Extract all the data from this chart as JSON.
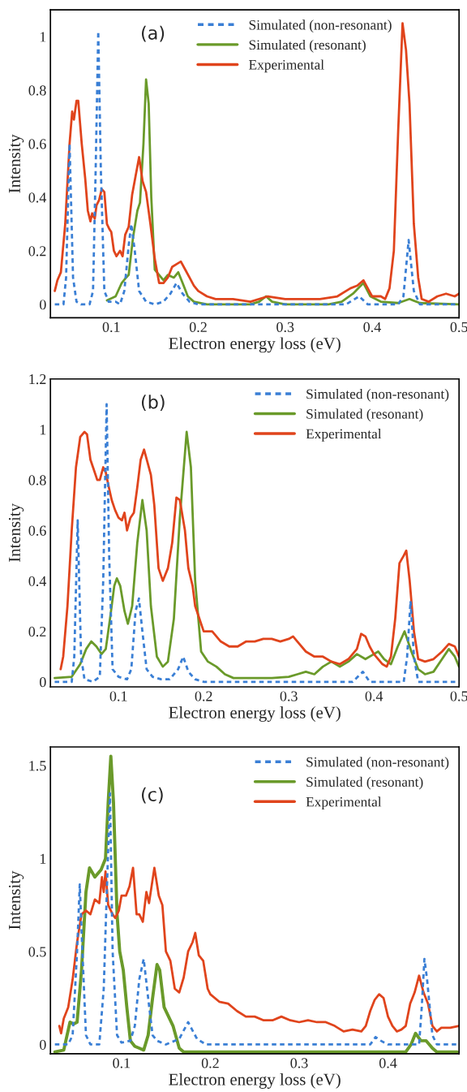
{
  "chart_data": [
    {
      "type": "line",
      "annotations": [
        "(a)"
      ],
      "xlabel": "Electron energy loss (eV)",
      "ylabel": "Intensity",
      "xlim": [
        0.03,
        0.5
      ],
      "ylim": [
        -0.05,
        1.1
      ],
      "xticks": [
        0.1,
        0.2,
        0.3,
        0.4,
        0.5
      ],
      "yticks": [
        0,
        0.2,
        0.4,
        0.6,
        0.8,
        1
      ],
      "legend": "top right",
      "grid": false,
      "series": [
        {
          "name": "Simulated (non-resonant)",
          "color": "#3a7fd5",
          "line_style": "dashed",
          "x": [
            0.035,
            0.045,
            0.048,
            0.052,
            0.056,
            0.06,
            0.065,
            0.075,
            0.079,
            0.082,
            0.085,
            0.088,
            0.092,
            0.097,
            0.105,
            0.11,
            0.115,
            0.12,
            0.123,
            0.127,
            0.132,
            0.14,
            0.15,
            0.16,
            0.168,
            0.175,
            0.182,
            0.19,
            0.2,
            0.3,
            0.37,
            0.385,
            0.395,
            0.43,
            0.436,
            0.442,
            0.448,
            0.455,
            0.5
          ],
          "values": [
            0,
            0,
            0.1,
            0.6,
            0.1,
            0.01,
            0,
            0,
            0.05,
            0.5,
            1.02,
            0.5,
            0.05,
            0.01,
            0.01,
            0,
            0.05,
            0.22,
            0.3,
            0.2,
            0.05,
            0.01,
            0,
            0.01,
            0.04,
            0.08,
            0.04,
            0.01,
            0,
            0,
            0,
            0.03,
            0,
            0,
            0.03,
            0.24,
            0.05,
            0,
            0
          ]
        },
        {
          "name": "Simulated (resonant)",
          "color": "#6a9a2a",
          "line_style": "solid",
          "x": [
            0.095,
            0.105,
            0.112,
            0.117,
            0.12,
            0.125,
            0.13,
            0.133,
            0.137,
            0.14,
            0.143,
            0.146,
            0.15,
            0.155,
            0.16,
            0.165,
            0.172,
            0.177,
            0.182,
            0.188,
            0.195,
            0.21,
            0.26,
            0.27,
            0.278,
            0.285,
            0.3,
            0.35,
            0.365,
            0.378,
            0.39,
            0.398,
            0.41,
            0.43,
            0.443,
            0.455,
            0.5
          ],
          "values": [
            0.015,
            0.03,
            0.08,
            0.1,
            0.11,
            0.25,
            0.35,
            0.38,
            0.6,
            0.84,
            0.75,
            0.4,
            0.13,
            0.11,
            0.09,
            0.11,
            0.1,
            0.12,
            0.08,
            0.03,
            0.01,
            0,
            0,
            0.01,
            0.03,
            0.01,
            0,
            0,
            0.01,
            0.04,
            0.08,
            0.03,
            0.01,
            0.005,
            0.02,
            0.005,
            0
          ]
        },
        {
          "name": "Experimental",
          "color": "#e0441c",
          "line_style": "solid",
          "x": [
            0.035,
            0.038,
            0.042,
            0.047,
            0.052,
            0.055,
            0.057,
            0.06,
            0.062,
            0.066,
            0.07,
            0.073,
            0.076,
            0.078,
            0.081,
            0.083,
            0.086,
            0.089,
            0.092,
            0.095,
            0.098,
            0.1,
            0.103,
            0.106,
            0.11,
            0.113,
            0.116,
            0.12,
            0.124,
            0.128,
            0.132,
            0.136,
            0.14,
            0.145,
            0.15,
            0.155,
            0.16,
            0.165,
            0.17,
            0.175,
            0.18,
            0.185,
            0.19,
            0.195,
            0.2,
            0.21,
            0.22,
            0.24,
            0.26,
            0.28,
            0.3,
            0.32,
            0.34,
            0.36,
            0.375,
            0.383,
            0.39,
            0.395,
            0.4,
            0.41,
            0.415,
            0.42,
            0.425,
            0.43,
            0.435,
            0.439,
            0.443,
            0.448,
            0.453,
            0.457,
            0.465,
            0.475,
            0.485,
            0.495,
            0.5
          ],
          "values": [
            0.05,
            0.09,
            0.12,
            0.3,
            0.6,
            0.72,
            0.69,
            0.76,
            0.76,
            0.6,
            0.47,
            0.35,
            0.31,
            0.34,
            0.32,
            0.37,
            0.39,
            0.43,
            0.42,
            0.3,
            0.28,
            0.27,
            0.2,
            0.18,
            0.2,
            0.18,
            0.26,
            0.29,
            0.41,
            0.48,
            0.55,
            0.46,
            0.42,
            0.3,
            0.17,
            0.08,
            0.08,
            0.1,
            0.14,
            0.15,
            0.16,
            0.13,
            0.1,
            0.07,
            0.05,
            0.03,
            0.02,
            0.02,
            0.01,
            0.03,
            0.02,
            0.02,
            0.02,
            0.03,
            0.06,
            0.07,
            0.09,
            0.06,
            0.03,
            0.03,
            0.02,
            0.06,
            0.2,
            0.65,
            1.05,
            0.95,
            0.75,
            0.3,
            0.1,
            0.02,
            0.01,
            0.03,
            0.04,
            0.03,
            0.04
          ]
        }
      ]
    },
    {
      "type": "line",
      "annotations": [
        "(b)"
      ],
      "xlabel": "Electron energy loss (eV)",
      "ylabel": "Intensity",
      "xlim": [
        0.02,
        0.5
      ],
      "ylim": [
        -0.02,
        1.2
      ],
      "xticks": [
        0.1,
        0.2,
        0.3,
        0.4,
        0.5
      ],
      "yticks": [
        0,
        0.2,
        0.4,
        0.6,
        0.8,
        1,
        1.2
      ],
      "legend": "top right",
      "grid": false,
      "series": [
        {
          "name": "Simulated (non-resonant)",
          "color": "#3a7fd5",
          "line_style": "dashed",
          "x": [
            0.025,
            0.045,
            0.048,
            0.052,
            0.056,
            0.06,
            0.07,
            0.078,
            0.082,
            0.086,
            0.089,
            0.093,
            0.1,
            0.11,
            0.115,
            0.12,
            0.124,
            0.128,
            0.133,
            0.14,
            0.15,
            0.16,
            0.17,
            0.176,
            0.182,
            0.19,
            0.2,
            0.375,
            0.387,
            0.395,
            0.435,
            0.439,
            0.443,
            0.447,
            0.452,
            0.5
          ],
          "values": [
            0,
            0,
            0.1,
            0.64,
            0.1,
            0.01,
            0,
            0.02,
            0.4,
            1.1,
            0.5,
            0.05,
            0.02,
            0.01,
            0.05,
            0.28,
            0.33,
            0.2,
            0.05,
            0.02,
            0.01,
            0.01,
            0.05,
            0.1,
            0.04,
            0.01,
            0,
            0,
            0.04,
            0,
            0,
            0.1,
            0.32,
            0.1,
            0,
            0
          ]
        },
        {
          "name": "Simulated (resonant)",
          "color": "#6a9a2a",
          "line_style": "solid",
          "x": [
            0.025,
            0.045,
            0.055,
            0.062,
            0.068,
            0.074,
            0.08,
            0.085,
            0.09,
            0.095,
            0.098,
            0.102,
            0.107,
            0.111,
            0.116,
            0.122,
            0.128,
            0.133,
            0.138,
            0.145,
            0.152,
            0.158,
            0.165,
            0.172,
            0.18,
            0.185,
            0.19,
            0.197,
            0.205,
            0.215,
            0.225,
            0.235,
            0.28,
            0.3,
            0.31,
            0.32,
            0.33,
            0.34,
            0.35,
            0.36,
            0.37,
            0.38,
            0.39,
            0.4,
            0.405,
            0.412,
            0.42,
            0.428,
            0.436,
            0.444,
            0.452,
            0.46,
            0.47,
            0.48,
            0.488,
            0.495,
            0.5
          ],
          "values": [
            0.015,
            0.02,
            0.07,
            0.13,
            0.16,
            0.14,
            0.11,
            0.13,
            0.25,
            0.38,
            0.41,
            0.38,
            0.28,
            0.23,
            0.3,
            0.55,
            0.72,
            0.6,
            0.3,
            0.1,
            0.06,
            0.08,
            0.25,
            0.65,
            0.99,
            0.85,
            0.4,
            0.12,
            0.08,
            0.06,
            0.03,
            0.015,
            0.015,
            0.02,
            0.03,
            0.04,
            0.03,
            0.06,
            0.08,
            0.06,
            0.08,
            0.11,
            0.09,
            0.11,
            0.12,
            0.09,
            0.07,
            0.14,
            0.2,
            0.12,
            0.05,
            0.03,
            0.04,
            0.09,
            0.13,
            0.1,
            0.06
          ]
        },
        {
          "name": "Experimental",
          "color": "#e0441c",
          "line_style": "solid",
          "x": [
            0.032,
            0.035,
            0.04,
            0.045,
            0.05,
            0.055,
            0.06,
            0.063,
            0.067,
            0.07,
            0.075,
            0.078,
            0.082,
            0.085,
            0.088,
            0.092,
            0.096,
            0.1,
            0.104,
            0.107,
            0.11,
            0.114,
            0.118,
            0.122,
            0.126,
            0.13,
            0.134,
            0.138,
            0.142,
            0.147,
            0.152,
            0.158,
            0.163,
            0.168,
            0.172,
            0.178,
            0.182,
            0.187,
            0.19,
            0.195,
            0.2,
            0.21,
            0.22,
            0.23,
            0.24,
            0.25,
            0.26,
            0.27,
            0.28,
            0.29,
            0.3,
            0.305,
            0.31,
            0.32,
            0.33,
            0.34,
            0.35,
            0.36,
            0.37,
            0.38,
            0.385,
            0.39,
            0.395,
            0.4,
            0.41,
            0.415,
            0.42,
            0.425,
            0.43,
            0.435,
            0.438,
            0.442,
            0.447,
            0.452,
            0.46,
            0.47,
            0.48,
            0.488,
            0.495,
            0.5
          ],
          "values": [
            0.05,
            0.1,
            0.3,
            0.6,
            0.85,
            0.97,
            0.99,
            0.98,
            0.88,
            0.85,
            0.8,
            0.8,
            0.85,
            0.83,
            0.78,
            0.72,
            0.68,
            0.65,
            0.64,
            0.67,
            0.6,
            0.65,
            0.67,
            0.77,
            0.88,
            0.92,
            0.87,
            0.82,
            0.7,
            0.45,
            0.4,
            0.45,
            0.55,
            0.73,
            0.72,
            0.6,
            0.45,
            0.38,
            0.3,
            0.25,
            0.2,
            0.2,
            0.16,
            0.14,
            0.14,
            0.16,
            0.16,
            0.17,
            0.17,
            0.16,
            0.17,
            0.18,
            0.16,
            0.12,
            0.1,
            0.1,
            0.08,
            0.07,
            0.09,
            0.13,
            0.19,
            0.18,
            0.14,
            0.11,
            0.07,
            0.06,
            0.1,
            0.25,
            0.47,
            0.5,
            0.52,
            0.4,
            0.2,
            0.09,
            0.08,
            0.09,
            0.12,
            0.15,
            0.14,
            0.1
          ]
        }
      ]
    },
    {
      "type": "line",
      "annotations": [
        "(c)"
      ],
      "xlabel": "Electron energy loss (eV)",
      "ylabel": "Intensity",
      "xlim": [
        0.02,
        0.48
      ],
      "ylim": [
        -0.05,
        1.6
      ],
      "xticks": [
        0.1,
        0.2,
        0.3,
        0.4
      ],
      "yticks": [
        0,
        0.5,
        1,
        1.5
      ],
      "legend": "top right",
      "grid": false,
      "series": [
        {
          "name": "Simulated (non-resonant)",
          "color": "#3a7fd5",
          "line_style": "dashed",
          "x": [
            0.025,
            0.04,
            0.045,
            0.05,
            0.053,
            0.056,
            0.06,
            0.065,
            0.075,
            0.08,
            0.084,
            0.087,
            0.09,
            0.095,
            0.1,
            0.11,
            0.115,
            0.12,
            0.125,
            0.13,
            0.135,
            0.14,
            0.15,
            0.165,
            0.175,
            0.185,
            0.195,
            0.38,
            0.386,
            0.392,
            0.4,
            0.435,
            0.438,
            0.441,
            0.444,
            0.45,
            0.455,
            0.48
          ],
          "values": [
            0,
            0,
            0.05,
            0.5,
            0.86,
            0.5,
            0.05,
            0,
            0,
            0.3,
            0.9,
            1.35,
            0.5,
            0.05,
            0.01,
            0.02,
            0.1,
            0.35,
            0.46,
            0.25,
            0.05,
            0.02,
            0,
            0.03,
            0.12,
            0.03,
            0,
            0,
            0.04,
            0.02,
            0,
            0,
            0.2,
            0.46,
            0.35,
            0.05,
            0,
            0
          ]
        },
        {
          "name": "Simulated (resonant)",
          "color": "#6a9a2a",
          "line_style": "solid",
          "x": [
            0.025,
            0.035,
            0.042,
            0.046,
            0.05,
            0.055,
            0.06,
            0.064,
            0.07,
            0.077,
            0.082,
            0.085,
            0.088,
            0.091,
            0.095,
            0.098,
            0.102,
            0.106,
            0.11,
            0.115,
            0.12,
            0.125,
            0.13,
            0.135,
            0.14,
            0.143,
            0.148,
            0.153,
            0.158,
            0.165,
            0.17,
            0.42,
            0.426,
            0.431,
            0.437,
            0.443,
            0.45,
            0.455,
            0.478
          ],
          "values": [
            -0.04,
            -0.03,
            0.12,
            0.11,
            0.12,
            0.4,
            0.82,
            0.95,
            0.9,
            0.94,
            1.0,
            1.3,
            1.55,
            1.3,
            0.7,
            0.5,
            0.4,
            0.2,
            0.02,
            -0.01,
            -0.02,
            -0.03,
            0.05,
            0.25,
            0.43,
            0.4,
            0.2,
            0.15,
            0.1,
            -0.02,
            -0.04,
            -0.04,
            0,
            0.06,
            0.02,
            0.02,
            -0.02,
            -0.04,
            -0.04
          ]
        },
        {
          "name": "Experimental",
          "color": "#e0441c",
          "line_style": "solid",
          "x": [
            0.03,
            0.032,
            0.035,
            0.04,
            0.045,
            0.05,
            0.055,
            0.06,
            0.065,
            0.07,
            0.075,
            0.078,
            0.08,
            0.082,
            0.085,
            0.09,
            0.093,
            0.097,
            0.1,
            0.105,
            0.109,
            0.113,
            0.117,
            0.12,
            0.124,
            0.128,
            0.131,
            0.137,
            0.142,
            0.146,
            0.15,
            0.155,
            0.16,
            0.165,
            0.17,
            0.175,
            0.18,
            0.183,
            0.187,
            0.192,
            0.197,
            0.2,
            0.21,
            0.22,
            0.23,
            0.24,
            0.25,
            0.26,
            0.27,
            0.28,
            0.29,
            0.3,
            0.31,
            0.32,
            0.33,
            0.34,
            0.35,
            0.36,
            0.37,
            0.375,
            0.38,
            0.385,
            0.39,
            0.395,
            0.4,
            0.405,
            0.41,
            0.415,
            0.42,
            0.425,
            0.43,
            0.435,
            0.44,
            0.445,
            0.45,
            0.455,
            0.46,
            0.47,
            0.48
          ],
          "values": [
            0.1,
            0.06,
            0.14,
            0.2,
            0.35,
            0.55,
            0.7,
            0.72,
            0.7,
            0.78,
            0.76,
            0.9,
            0.82,
            0.93,
            0.75,
            0.7,
            0.68,
            0.72,
            0.8,
            0.8,
            0.85,
            0.95,
            0.7,
            0.7,
            0.66,
            0.82,
            0.76,
            0.95,
            0.8,
            0.75,
            0.5,
            0.45,
            0.3,
            0.28,
            0.36,
            0.5,
            0.55,
            0.6,
            0.48,
            0.45,
            0.3,
            0.27,
            0.23,
            0.22,
            0.18,
            0.15,
            0.15,
            0.13,
            0.13,
            0.15,
            0.13,
            0.12,
            0.13,
            0.12,
            0.12,
            0.1,
            0.07,
            0.08,
            0.07,
            0.1,
            0.18,
            0.24,
            0.27,
            0.25,
            0.15,
            0.1,
            0.07,
            0.08,
            0.1,
            0.22,
            0.28,
            0.37,
            0.28,
            0.22,
            0.1,
            0.07,
            0.09,
            0.09,
            0.1
          ]
        }
      ]
    }
  ]
}
